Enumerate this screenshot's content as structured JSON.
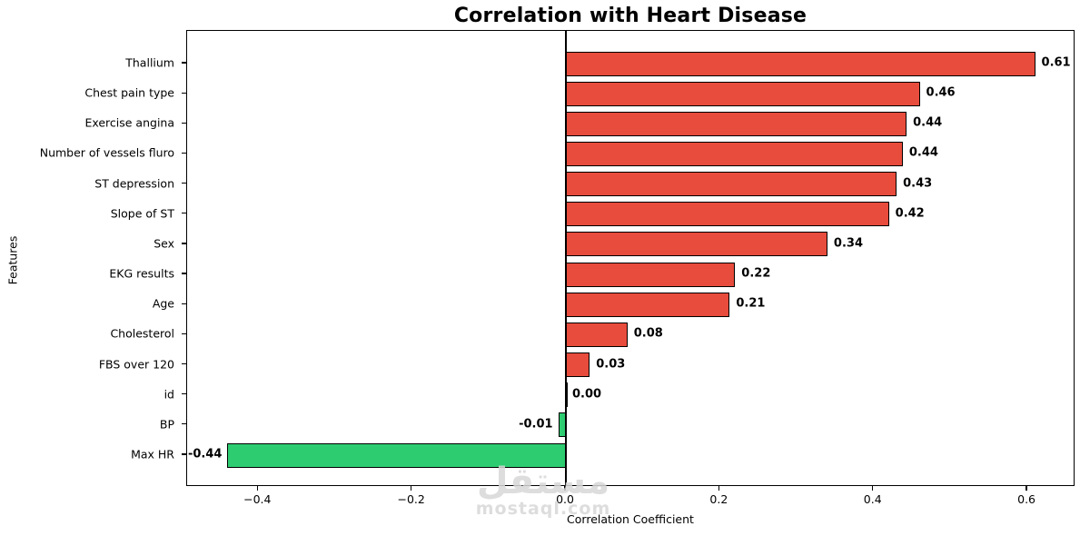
{
  "chart_data": {
    "type": "bar",
    "orientation": "horizontal",
    "title": "Correlation with Heart Disease",
    "xlabel": "Correlation Coefficient",
    "ylabel": "Features",
    "categories": [
      "Thallium",
      "Chest pain type",
      "Exercise angina",
      "Number of vessels fluro",
      "ST depression",
      "Slope of ST",
      "Sex",
      "EKG results",
      "Age",
      "Cholesterol",
      "FBS over 120",
      "id",
      "BP",
      "Max HR"
    ],
    "values": [
      0.61,
      0.46,
      0.443,
      0.438,
      0.43,
      0.42,
      0.34,
      0.22,
      0.213,
      0.08,
      0.031,
      0.0,
      -0.01,
      -0.44
    ],
    "value_labels": [
      "0.61",
      "0.46",
      "0.44",
      "0.44",
      "0.43",
      "0.42",
      "0.34",
      "0.22",
      "0.21",
      "0.08",
      "0.03",
      "0.00",
      "-0.01",
      "-0.44"
    ],
    "xticks": [
      -0.4,
      -0.2,
      0.0,
      0.2,
      0.4,
      0.6
    ],
    "xtick_labels": [
      "−0.4",
      "−0.2",
      "0.0",
      "0.2",
      "0.4",
      "0.6"
    ],
    "xlim": [
      -0.4925,
      0.6625
    ],
    "grid": false,
    "legend": null,
    "positive_color": "#e74c3c",
    "negative_color": "#2ecc71",
    "bar_edge_color": "#000000",
    "zero_line": true
  },
  "watermark": {
    "logo_text": "مستقل",
    "domain_text": "mostaql.com",
    "color": "#d8d8d8"
  }
}
